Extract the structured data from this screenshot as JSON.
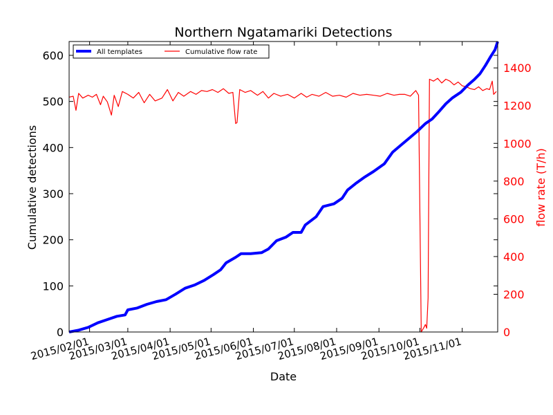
{
  "chart_data": {
    "type": "line",
    "title": "Northern Ngatamariki Detections",
    "xlabel": "Date",
    "ylabel_left": "Cumulative detections",
    "ylabel_right": "flow rate (T/h)",
    "x_range": [
      "2015-01-17",
      "2015-11-27"
    ],
    "y_left_range": [
      0,
      630
    ],
    "y_right_range": [
      0,
      1540
    ],
    "x_ticks": [
      "2015/02/01",
      "2015/03/01",
      "2015/04/01",
      "2015/05/01",
      "2015/06/01",
      "2015/07/01",
      "2015/08/01",
      "2015/09/01",
      "2015/10/01",
      "2015/11/01"
    ],
    "y_left_ticks": [
      0,
      100,
      200,
      300,
      400,
      500,
      600
    ],
    "y_right_ticks": [
      0,
      200,
      400,
      600,
      800,
      1000,
      1200,
      1400
    ],
    "legend": {
      "placement": "top-left",
      "entries": [
        "All templates",
        "Cumulative flow rate"
      ]
    },
    "colors": {
      "detections": "#0000ff",
      "flow": "#ff0000",
      "right_axis": "#ff0000"
    },
    "series": [
      {
        "name": "All templates",
        "axis": "left",
        "points": [
          [
            "2015-01-17",
            0
          ],
          [
            "2015-01-24",
            4
          ],
          [
            "2015-01-31",
            10
          ],
          [
            "2015-02-07",
            20
          ],
          [
            "2015-02-14",
            27
          ],
          [
            "2015-02-21",
            34
          ],
          [
            "2015-02-27",
            37
          ],
          [
            "2015-03-01",
            48
          ],
          [
            "2015-03-08",
            52
          ],
          [
            "2015-03-15",
            60
          ],
          [
            "2015-03-22",
            66
          ],
          [
            "2015-03-29",
            70
          ],
          [
            "2015-04-05",
            82
          ],
          [
            "2015-04-12",
            95
          ],
          [
            "2015-04-19",
            102
          ],
          [
            "2015-04-26",
            112
          ],
          [
            "2015-05-03",
            125
          ],
          [
            "2015-05-08",
            135
          ],
          [
            "2015-05-12",
            150
          ],
          [
            "2015-05-19",
            162
          ],
          [
            "2015-05-23",
            170
          ],
          [
            "2015-05-30",
            170
          ],
          [
            "2015-06-07",
            172
          ],
          [
            "2015-06-12",
            180
          ],
          [
            "2015-06-18",
            198
          ],
          [
            "2015-06-25",
            206
          ],
          [
            "2015-06-30",
            216
          ],
          [
            "2015-07-06",
            216
          ],
          [
            "2015-07-09",
            232
          ],
          [
            "2015-07-17",
            250
          ],
          [
            "2015-07-22",
            272
          ],
          [
            "2015-07-30",
            278
          ],
          [
            "2015-08-05",
            290
          ],
          [
            "2015-08-09",
            308
          ],
          [
            "2015-08-15",
            322
          ],
          [
            "2015-08-21",
            335
          ],
          [
            "2015-08-28",
            348
          ],
          [
            "2015-09-05",
            365
          ],
          [
            "2015-09-11",
            390
          ],
          [
            "2015-09-17",
            405
          ],
          [
            "2015-09-23",
            420
          ],
          [
            "2015-09-29",
            435
          ],
          [
            "2015-10-05",
            452
          ],
          [
            "2015-10-10",
            462
          ],
          [
            "2015-10-15",
            478
          ],
          [
            "2015-10-20",
            495
          ],
          [
            "2015-10-25",
            508
          ],
          [
            "2015-10-31",
            520
          ],
          [
            "2015-11-05",
            535
          ],
          [
            "2015-11-10",
            548
          ],
          [
            "2015-11-14",
            560
          ],
          [
            "2015-11-18",
            578
          ],
          [
            "2015-11-22",
            598
          ],
          [
            "2015-11-25",
            612
          ],
          [
            "2015-11-27",
            630
          ]
        ]
      },
      {
        "name": "Cumulative flow rate",
        "axis": "right",
        "points": [
          [
            "2015-01-17",
            1245
          ],
          [
            "2015-01-20",
            1250
          ],
          [
            "2015-01-22",
            1175
          ],
          [
            "2015-01-24",
            1265
          ],
          [
            "2015-01-27",
            1240
          ],
          [
            "2015-01-31",
            1255
          ],
          [
            "2015-02-03",
            1245
          ],
          [
            "2015-02-06",
            1260
          ],
          [
            "2015-02-09",
            1205
          ],
          [
            "2015-02-11",
            1250
          ],
          [
            "2015-02-14",
            1220
          ],
          [
            "2015-02-17",
            1150
          ],
          [
            "2015-02-19",
            1255
          ],
          [
            "2015-02-22",
            1195
          ],
          [
            "2015-02-25",
            1275
          ],
          [
            "2015-03-01",
            1260
          ],
          [
            "2015-03-05",
            1240
          ],
          [
            "2015-03-09",
            1270
          ],
          [
            "2015-03-13",
            1215
          ],
          [
            "2015-03-17",
            1260
          ],
          [
            "2015-03-21",
            1225
          ],
          [
            "2015-03-26",
            1240
          ],
          [
            "2015-03-30",
            1285
          ],
          [
            "2015-04-03",
            1225
          ],
          [
            "2015-04-07",
            1270
          ],
          [
            "2015-04-11",
            1250
          ],
          [
            "2015-04-16",
            1275
          ],
          [
            "2015-04-20",
            1260
          ],
          [
            "2015-04-24",
            1280
          ],
          [
            "2015-04-28",
            1275
          ],
          [
            "2015-05-02",
            1285
          ],
          [
            "2015-05-06",
            1270
          ],
          [
            "2015-05-10",
            1290
          ],
          [
            "2015-05-14",
            1265
          ],
          [
            "2015-05-17",
            1270
          ],
          [
            "2015-05-19",
            1105
          ],
          [
            "2015-05-20",
            1110
          ],
          [
            "2015-05-22",
            1285
          ],
          [
            "2015-05-26",
            1270
          ],
          [
            "2015-05-30",
            1280
          ],
          [
            "2015-06-04",
            1255
          ],
          [
            "2015-06-08",
            1275
          ],
          [
            "2015-06-12",
            1240
          ],
          [
            "2015-06-16",
            1265
          ],
          [
            "2015-06-21",
            1250
          ],
          [
            "2015-06-26",
            1260
          ],
          [
            "2015-07-01",
            1240
          ],
          [
            "2015-07-06",
            1265
          ],
          [
            "2015-07-10",
            1245
          ],
          [
            "2015-07-14",
            1260
          ],
          [
            "2015-07-19",
            1250
          ],
          [
            "2015-07-24",
            1270
          ],
          [
            "2015-07-29",
            1250
          ],
          [
            "2015-08-03",
            1255
          ],
          [
            "2015-08-08",
            1245
          ],
          [
            "2015-08-13",
            1265
          ],
          [
            "2015-08-18",
            1255
          ],
          [
            "2015-08-23",
            1260
          ],
          [
            "2015-08-28",
            1255
          ],
          [
            "2015-09-02",
            1250
          ],
          [
            "2015-09-07",
            1265
          ],
          [
            "2015-09-12",
            1255
          ],
          [
            "2015-09-16",
            1260
          ],
          [
            "2015-09-20",
            1260
          ],
          [
            "2015-09-24",
            1250
          ],
          [
            "2015-09-28",
            1280
          ],
          [
            "2015-09-30",
            1255
          ],
          [
            "2015-10-02",
            0
          ],
          [
            "2015-10-04",
            25
          ],
          [
            "2015-10-05",
            40
          ],
          [
            "2015-10-06",
            20
          ],
          [
            "2015-10-07",
            180
          ],
          [
            "2015-10-08",
            1340
          ],
          [
            "2015-10-11",
            1330
          ],
          [
            "2015-10-14",
            1345
          ],
          [
            "2015-10-17",
            1320
          ],
          [
            "2015-10-20",
            1340
          ],
          [
            "2015-10-23",
            1330
          ],
          [
            "2015-10-26",
            1310
          ],
          [
            "2015-10-29",
            1325
          ],
          [
            "2015-11-01",
            1305
          ],
          [
            "2015-11-04",
            1300
          ],
          [
            "2015-11-07",
            1290
          ],
          [
            "2015-11-10",
            1285
          ],
          [
            "2015-11-13",
            1300
          ],
          [
            "2015-11-16",
            1280
          ],
          [
            "2015-11-19",
            1290
          ],
          [
            "2015-11-21",
            1285
          ],
          [
            "2015-11-23",
            1330
          ],
          [
            "2015-11-24",
            1260
          ],
          [
            "2015-11-26",
            1275
          ]
        ]
      }
    ]
  }
}
